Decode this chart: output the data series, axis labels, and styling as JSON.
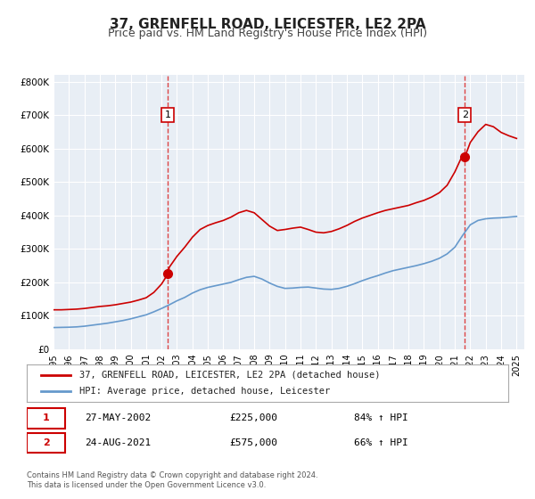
{
  "title": "37, GRENFELL ROAD, LEICESTER, LE2 2PA",
  "subtitle": "Price paid vs. HM Land Registry's House Price Index (HPI)",
  "title_fontsize": 11,
  "subtitle_fontsize": 9,
  "background_color": "#ffffff",
  "plot_bg_color": "#e8eef5",
  "grid_color": "#ffffff",
  "red_line_color": "#cc0000",
  "blue_line_color": "#6699cc",
  "marker_color": "#cc0000",
  "dashed_line_color": "#dd4444",
  "xlabel": "",
  "ylabel": "",
  "ylim": [
    0,
    820000
  ],
  "yticks": [
    0,
    100000,
    200000,
    300000,
    400000,
    500000,
    600000,
    700000,
    800000
  ],
  "ytick_labels": [
    "£0",
    "£100K",
    "£200K",
    "£300K",
    "£400K",
    "£500K",
    "£600K",
    "£700K",
    "£800K"
  ],
  "xmin": 1995.0,
  "xmax": 2025.5,
  "xticks": [
    1995,
    1996,
    1997,
    1998,
    1999,
    2000,
    2001,
    2002,
    2003,
    2004,
    2005,
    2006,
    2007,
    2008,
    2009,
    2010,
    2011,
    2012,
    2013,
    2014,
    2015,
    2016,
    2017,
    2018,
    2019,
    2020,
    2021,
    2022,
    2023,
    2024,
    2025
  ],
  "annotation1": {
    "x": 2002.41,
    "label": "1",
    "date": "27-MAY-2002",
    "price": "£225,000",
    "hpi": "84% ↑ HPI"
  },
  "annotation2": {
    "x": 2021.65,
    "label": "2",
    "date": "24-AUG-2021",
    "price": "£575,000",
    "hpi": "66% ↑ HPI"
  },
  "legend_label1": "37, GRENFELL ROAD, LEICESTER, LE2 2PA (detached house)",
  "legend_label2": "HPI: Average price, detached house, Leicester",
  "footer1": "Contains HM Land Registry data © Crown copyright and database right 2024.",
  "footer2": "This data is licensed under the Open Government Licence v3.0.",
  "red_series": {
    "x": [
      1995.0,
      1995.5,
      1996.0,
      1996.5,
      1997.0,
      1997.5,
      1998.0,
      1998.5,
      1999.0,
      1999.5,
      2000.0,
      2000.5,
      2001.0,
      2001.5,
      2002.0,
      2002.41,
      2002.5,
      2003.0,
      2003.5,
      2004.0,
      2004.5,
      2005.0,
      2005.5,
      2006.0,
      2006.5,
      2007.0,
      2007.5,
      2008.0,
      2008.5,
      2009.0,
      2009.5,
      2010.0,
      2010.5,
      2011.0,
      2011.5,
      2012.0,
      2012.5,
      2013.0,
      2013.5,
      2014.0,
      2014.5,
      2015.0,
      2015.5,
      2016.0,
      2016.5,
      2017.0,
      2017.5,
      2018.0,
      2018.5,
      2019.0,
      2019.5,
      2020.0,
      2020.5,
      2021.0,
      2021.5,
      2021.65,
      2022.0,
      2022.5,
      2023.0,
      2023.5,
      2024.0,
      2024.5,
      2025.0
    ],
    "y": [
      118000,
      118000,
      119000,
      120000,
      122000,
      125000,
      128000,
      130000,
      133000,
      137000,
      141000,
      147000,
      154000,
      170000,
      195000,
      225000,
      245000,
      278000,
      305000,
      335000,
      358000,
      370000,
      378000,
      385000,
      395000,
      408000,
      415000,
      408000,
      388000,
      368000,
      355000,
      358000,
      362000,
      365000,
      358000,
      350000,
      348000,
      352000,
      360000,
      370000,
      382000,
      392000,
      400000,
      408000,
      415000,
      420000,
      425000,
      430000,
      438000,
      445000,
      455000,
      468000,
      490000,
      530000,
      580000,
      575000,
      618000,
      650000,
      672000,
      665000,
      648000,
      638000,
      630000
    ]
  },
  "blue_series": {
    "x": [
      1995.0,
      1995.5,
      1996.0,
      1996.5,
      1997.0,
      1997.5,
      1998.0,
      1998.5,
      1999.0,
      1999.5,
      2000.0,
      2000.5,
      2001.0,
      2001.5,
      2002.0,
      2002.5,
      2003.0,
      2003.5,
      2004.0,
      2004.5,
      2005.0,
      2005.5,
      2006.0,
      2006.5,
      2007.0,
      2007.5,
      2008.0,
      2008.5,
      2009.0,
      2009.5,
      2010.0,
      2010.5,
      2011.0,
      2011.5,
      2012.0,
      2012.5,
      2013.0,
      2013.5,
      2014.0,
      2014.5,
      2015.0,
      2015.5,
      2016.0,
      2016.5,
      2017.0,
      2017.5,
      2018.0,
      2018.5,
      2019.0,
      2019.5,
      2020.0,
      2020.5,
      2021.0,
      2021.5,
      2022.0,
      2022.5,
      2023.0,
      2023.5,
      2024.0,
      2024.5,
      2025.0
    ],
    "y": [
      65000,
      65500,
      66000,
      67000,
      69000,
      72000,
      75000,
      78000,
      82000,
      86000,
      91000,
      97000,
      103000,
      112000,
      122000,
      133000,
      145000,
      155000,
      168000,
      178000,
      185000,
      190000,
      195000,
      200000,
      208000,
      215000,
      218000,
      210000,
      198000,
      188000,
      182000,
      183000,
      185000,
      186000,
      183000,
      180000,
      179000,
      182000,
      188000,
      196000,
      205000,
      213000,
      220000,
      228000,
      235000,
      240000,
      245000,
      250000,
      256000,
      263000,
      272000,
      285000,
      305000,
      340000,
      372000,
      385000,
      390000,
      392000,
      393000,
      395000,
      397000
    ]
  }
}
